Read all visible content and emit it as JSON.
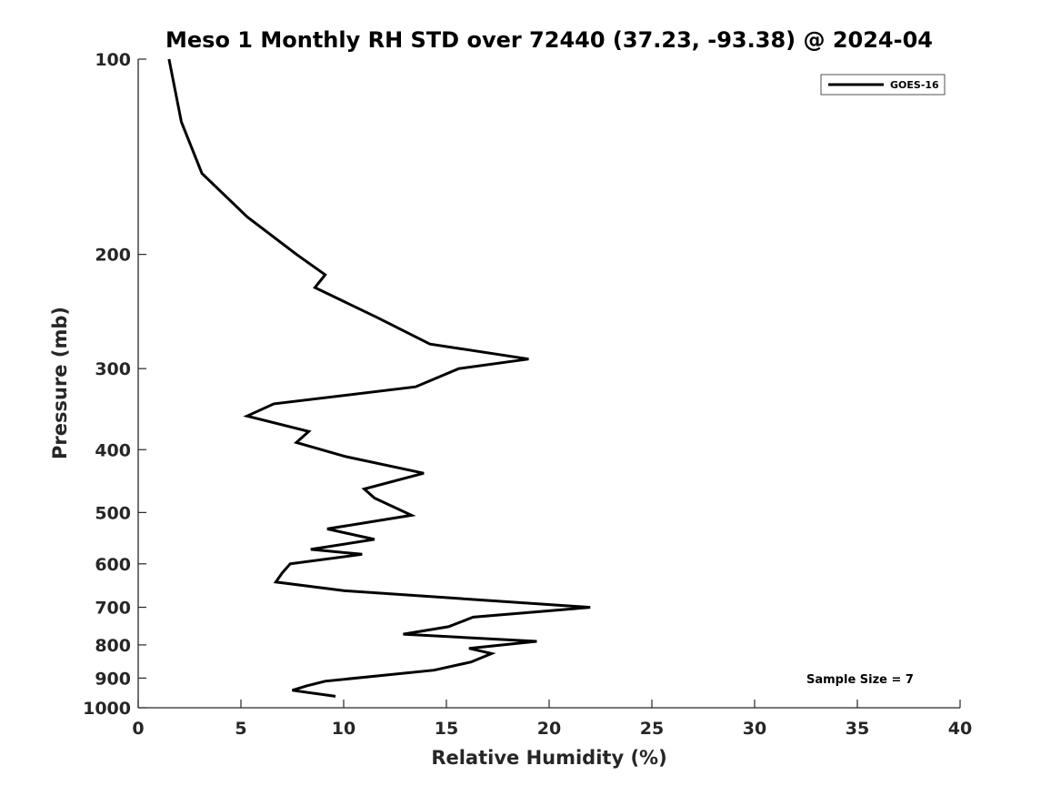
{
  "chart_data": {
    "type": "line",
    "title": "Meso 1 Monthly RH STD over 72440 (37.23, -93.38) @ 2024-04",
    "xlabel": "Relative Humidity (%)",
    "ylabel": "Pressure (mb)",
    "xlim": [
      0,
      40
    ],
    "ylim": [
      100,
      1000
    ],
    "y_scale": "log",
    "y_reversed": true,
    "x_ticks": [
      0,
      5,
      10,
      15,
      20,
      25,
      30,
      35,
      40
    ],
    "y_ticks": [
      100,
      200,
      300,
      400,
      500,
      600,
      700,
      800,
      900,
      1000
    ],
    "legend_position": "top-right",
    "annotation": "Sample Size = 7",
    "series": [
      {
        "name": "GOES-16",
        "color": "#000000",
        "points": [
          [
            1.5,
            100
          ],
          [
            2.1,
            125
          ],
          [
            3.1,
            150
          ],
          [
            5.3,
            175
          ],
          [
            7.7,
            200
          ],
          [
            9.1,
            215
          ],
          [
            8.6,
            225
          ],
          [
            11.6,
            250
          ],
          [
            14.2,
            275
          ],
          [
            19.0,
            290
          ],
          [
            15.6,
            300
          ],
          [
            13.5,
            320
          ],
          [
            6.6,
            340
          ],
          [
            5.3,
            355
          ],
          [
            8.3,
            375
          ],
          [
            7.7,
            390
          ],
          [
            10.1,
            410
          ],
          [
            13.9,
            435
          ],
          [
            11.0,
            460
          ],
          [
            11.5,
            475
          ],
          [
            13.3,
            505
          ],
          [
            9.2,
            530
          ],
          [
            11.5,
            550
          ],
          [
            8.4,
            570
          ],
          [
            10.9,
            580
          ],
          [
            7.4,
            600
          ],
          [
            7.0,
            620
          ],
          [
            6.7,
            640
          ],
          [
            10.0,
            660
          ],
          [
            22.0,
            700
          ],
          [
            16.3,
            725
          ],
          [
            15.1,
            750
          ],
          [
            12.9,
            770
          ],
          [
            19.4,
            790
          ],
          [
            16.1,
            810
          ],
          [
            17.2,
            825
          ],
          [
            16.2,
            850
          ],
          [
            14.4,
            875
          ],
          [
            9.1,
            910
          ],
          [
            8.2,
            925
          ],
          [
            7.5,
            940
          ],
          [
            9.6,
            960
          ]
        ]
      }
    ]
  }
}
